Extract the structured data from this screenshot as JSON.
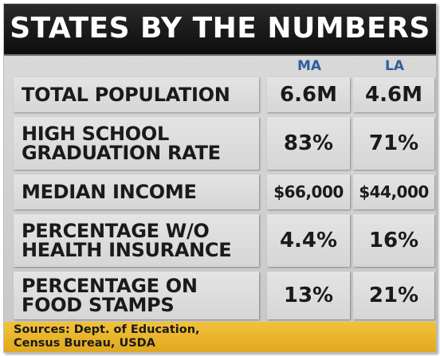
{
  "title": "STATES BY THE NUMBERS",
  "columns": {
    "ma": "MA",
    "la": "LA"
  },
  "rows": [
    {
      "label": "TOTAL POPULATION",
      "ma": "6.6M",
      "la": "4.6M"
    },
    {
      "label": "HIGH SCHOOL GRADUATION RATE",
      "ma": "83%",
      "la": "71%"
    },
    {
      "label": "MEDIAN INCOME",
      "ma": "$66,000",
      "la": "$44,000"
    },
    {
      "label": "PERCENTAGE W/O HEALTH INSURANCE",
      "ma": "4.4%",
      "la": "16%"
    },
    {
      "label": "PERCENTAGE ON FOOD STAMPS",
      "ma": "13%",
      "la": "21%"
    }
  ],
  "sources": "Sources: Dept. of Education,\nCensus Bureau, USDA",
  "colors": {
    "title_bg": "#111111",
    "header_text": "#2d5fa0",
    "sources_bg": "#e9b52b"
  }
}
